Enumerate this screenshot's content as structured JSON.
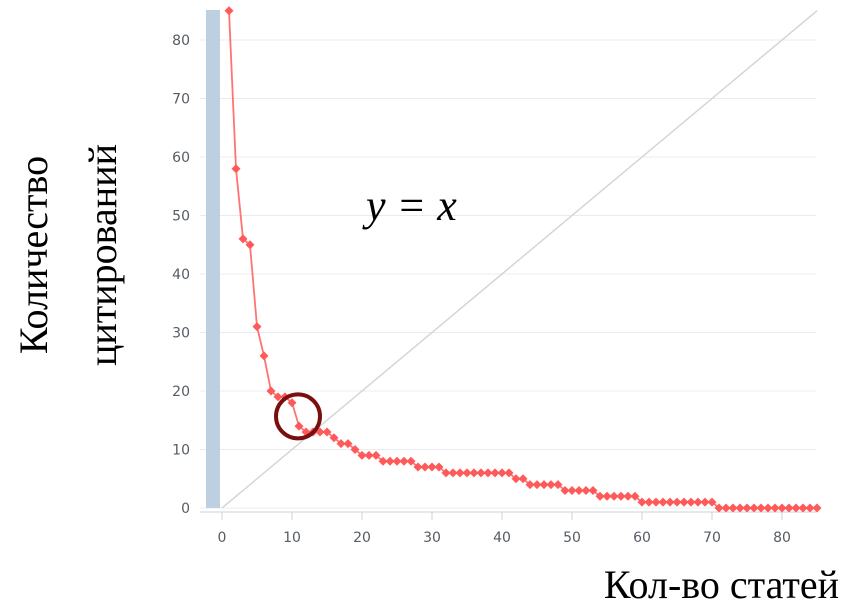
{
  "chart_data": {
    "type": "line",
    "xlabel": "Кол-во статей",
    "ylabel_lines": [
      "Количество",
      "цитирований"
    ],
    "xlim": [
      -3,
      85
    ],
    "ylim": [
      0,
      85
    ],
    "x_ticks": [
      0,
      10,
      20,
      30,
      40,
      50,
      60,
      70,
      80
    ],
    "y_ticks": [
      0,
      10,
      20,
      30,
      40,
      50,
      60,
      70,
      80
    ],
    "grid": true,
    "annotation": {
      "text": "y = x",
      "x": 20,
      "y": 53
    },
    "reference_line": {
      "label": "y = x",
      "x": [
        0,
        85
      ],
      "y": [
        0,
        85
      ]
    },
    "highlight": {
      "x": 8,
      "y": 16,
      "shape": "circle"
    },
    "colors": {
      "series": "#ff5a5a",
      "reference_line": "#d6d6d6",
      "grid": "#e9ecef",
      "highlight": "#7a0f0f",
      "band": "#bdd0e2"
    },
    "series": [
      {
        "x": [
          1,
          2,
          3,
          4,
          5,
          6,
          7,
          8,
          9,
          10,
          11,
          12,
          13,
          14,
          15,
          16,
          17,
          18,
          19,
          20,
          21,
          22,
          23,
          24,
          25,
          26,
          27,
          28,
          29,
          30,
          31,
          32,
          33,
          34,
          35,
          36,
          37,
          38,
          39,
          40,
          41,
          42,
          43,
          44,
          45,
          46,
          47,
          48,
          49,
          50,
          51,
          52,
          53,
          54,
          55,
          56,
          57,
          58,
          59,
          60,
          61,
          62,
          63,
          64,
          65,
          66,
          67,
          68,
          69,
          70,
          71,
          72,
          73,
          74,
          75,
          76,
          77,
          78,
          79,
          80,
          81,
          82,
          83,
          84,
          85
        ],
        "y": [
          85,
          58,
          46,
          45,
          31,
          26,
          20,
          19,
          19,
          18,
          14,
          13,
          13,
          13,
          13,
          12,
          11,
          11,
          10,
          9,
          9,
          9,
          8,
          8,
          8,
          8,
          8,
          7,
          7,
          7,
          7,
          6,
          6,
          6,
          6,
          6,
          6,
          6,
          6,
          6,
          6,
          5,
          5,
          4,
          4,
          4,
          4,
          4,
          3,
          3,
          3,
          3,
          3,
          2,
          2,
          2,
          2,
          2,
          2,
          1,
          1,
          1,
          1,
          1,
          1,
          1,
          1,
          1,
          1,
          1,
          0,
          0,
          0,
          0,
          0,
          0,
          0,
          0,
          0,
          0,
          0,
          0,
          0,
          0,
          0
        ]
      }
    ]
  }
}
